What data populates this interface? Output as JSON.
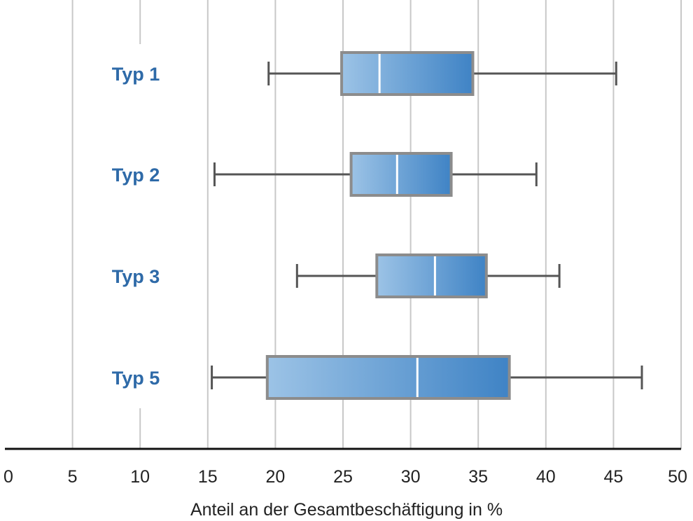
{
  "chart_data": {
    "type": "boxplot",
    "orientation": "horizontal",
    "xlabel": "Anteil an der Gesamtbeschäftigung in %",
    "xlim": [
      0,
      50
    ],
    "x_ticks": [
      0,
      5,
      10,
      15,
      20,
      25,
      30,
      35,
      40,
      45,
      50
    ],
    "grid": true,
    "categories": [
      "Typ 1",
      "Typ 2",
      "Typ 3",
      "Typ 5"
    ],
    "boxes": [
      {
        "label": "Typ 1",
        "min": 19.5,
        "q1": 24.9,
        "median": 27.7,
        "q3": 34.6,
        "max": 45.2
      },
      {
        "label": "Typ 2",
        "min": 15.5,
        "q1": 25.6,
        "median": 29.0,
        "q3": 33.0,
        "max": 39.3
      },
      {
        "label": "Typ 3",
        "min": 21.6,
        "q1": 27.5,
        "median": 31.8,
        "q3": 35.6,
        "max": 41.0
      },
      {
        "label": "Typ 5",
        "min": 15.3,
        "q1": 19.4,
        "median": 30.5,
        "q3": 37.3,
        "max": 47.1
      }
    ],
    "colors": {
      "box_fill_start": "#9cc3e6",
      "box_fill_end": "#3f83c5",
      "box_border": "#8c8c8c",
      "median_line": "#ffffff",
      "whisker": "#555555",
      "grid": "#c8c8c8",
      "category_label": "#2e6aa8",
      "axis_line": "#111111"
    }
  }
}
